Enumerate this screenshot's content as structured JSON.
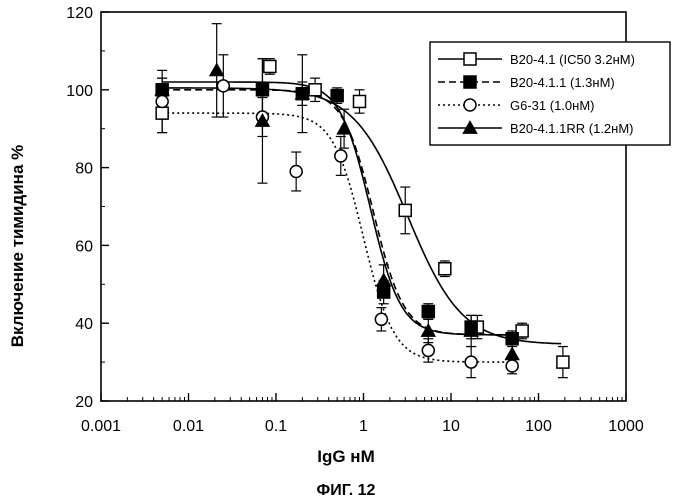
{
  "figure_caption": "ФИГ. 12",
  "chart_data": {
    "type": "scatter",
    "xlabel": "IgG нМ",
    "ylabel": "Включение тимидина %",
    "xscale": "log",
    "xlim": [
      0.001,
      1000
    ],
    "ylim": [
      20,
      120
    ],
    "xticks": [
      "0.001",
      "0.01",
      "0.1",
      "1",
      "10",
      "100",
      "1000"
    ],
    "yticks": [
      "20",
      "40",
      "60",
      "80",
      "100",
      "120"
    ],
    "legend_position": "top-right",
    "grid": false,
    "series": [
      {
        "name": "B20-4.1 (IC50 3.2нМ)",
        "marker": "open-square",
        "line_style": "solid",
        "fit": {
          "top": 100.5,
          "bottom": 34.5,
          "ic50": 3.2,
          "hill": 1.4
        },
        "points": [
          {
            "x": 0.005,
            "y": 94,
            "err": 5
          },
          {
            "x": 0.085,
            "y": 106,
            "err": 2
          },
          {
            "x": 0.28,
            "y": 100,
            "err": 3
          },
          {
            "x": 0.9,
            "y": 97,
            "err": 3
          },
          {
            "x": 3,
            "y": 69,
            "err": 6
          },
          {
            "x": 8.5,
            "y": 54,
            "err": 2
          },
          {
            "x": 20,
            "y": 39,
            "err": 3
          },
          {
            "x": 65,
            "y": 38,
            "err": 2
          },
          {
            "x": 190,
            "y": 30,
            "err": 4
          }
        ]
      },
      {
        "name": "B20-4.1.1 (1.3нМ)",
        "marker": "filled-square",
        "line_style": "dashed",
        "fit": {
          "top": 100,
          "bottom": 37,
          "ic50": 1.3,
          "hill": 2.5
        },
        "points": [
          {
            "x": 0.005,
            "y": 100,
            "err": 3
          },
          {
            "x": 0.07,
            "y": 100,
            "err": 8
          },
          {
            "x": 0.2,
            "y": 99,
            "err": 3
          },
          {
            "x": 0.5,
            "y": 98.5,
            "err": 2
          },
          {
            "x": 1.7,
            "y": 48,
            "err": 3
          },
          {
            "x": 5.5,
            "y": 43,
            "err": 2
          },
          {
            "x": 17,
            "y": 39,
            "err": 3
          },
          {
            "x": 50,
            "y": 36,
            "err": 2
          }
        ]
      },
      {
        "name": "G6-31 (1.0нМ)",
        "marker": "open-circle",
        "line_style": "dotted",
        "fit": {
          "top": 94,
          "bottom": 30,
          "ic50": 1.0,
          "hill": 2.5
        },
        "points": [
          {
            "x": 0.005,
            "y": 97,
            "err": 8
          },
          {
            "x": 0.025,
            "y": 101,
            "err": 8
          },
          {
            "x": 0.07,
            "y": 93,
            "err": 5
          },
          {
            "x": 0.17,
            "y": 79,
            "err": 5
          },
          {
            "x": 0.55,
            "y": 83,
            "err": 5
          },
          {
            "x": 1.6,
            "y": 41,
            "err": 3
          },
          {
            "x": 5.5,
            "y": 33,
            "err": 3
          },
          {
            "x": 17,
            "y": 30,
            "err": 4
          },
          {
            "x": 50,
            "y": 29,
            "err": 2
          }
        ]
      },
      {
        "name": "B20-4.1.1RR (1.2нМ)",
        "marker": "filled-triangle",
        "line_style": "solid",
        "fit": {
          "top": 102,
          "bottom": 37,
          "ic50": 1.2,
          "hill": 2.5
        },
        "points": [
          {
            "x": 0.005,
            "y": 100,
            "err": 3
          },
          {
            "x": 0.021,
            "y": 105,
            "err": 12
          },
          {
            "x": 0.07,
            "y": 92,
            "err": 16
          },
          {
            "x": 0.2,
            "y": 99,
            "err": 10
          },
          {
            "x": 0.6,
            "y": 90,
            "err": 5
          },
          {
            "x": 1.7,
            "y": 51,
            "err": 4
          },
          {
            "x": 5.5,
            "y": 38,
            "err": 3
          },
          {
            "x": 17,
            "y": 38,
            "err": 4
          },
          {
            "x": 50,
            "y": 32,
            "err": 3
          }
        ]
      }
    ]
  }
}
